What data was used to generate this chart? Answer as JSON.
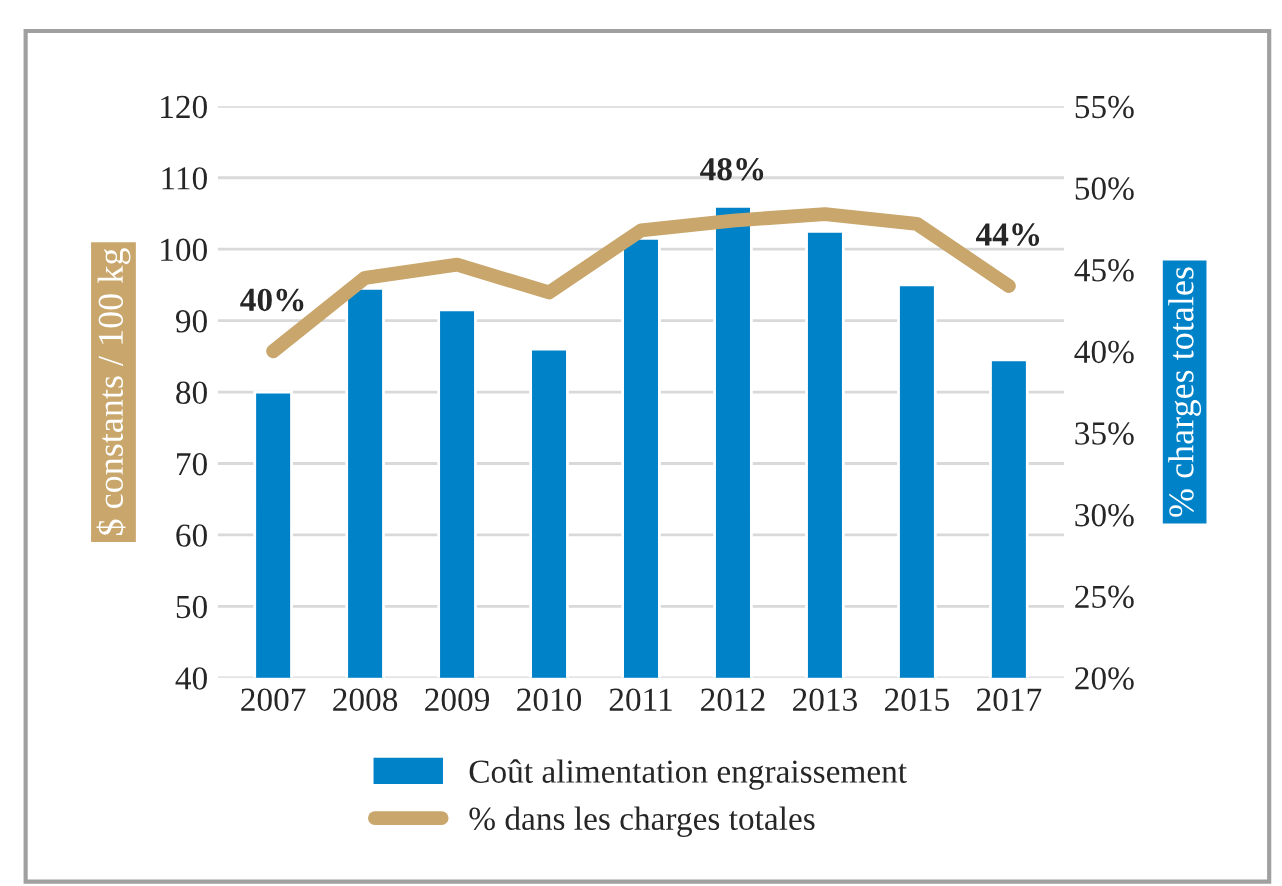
{
  "chart_data": {
    "type": "bar",
    "categories": [
      "2007",
      "2008",
      "2009",
      "2010",
      "2011",
      "2012",
      "2013",
      "2015",
      "2017"
    ],
    "ylabel": "$ constants / 100 kg",
    "y2label": "% charges totales",
    "series": [
      {
        "name": "Coût alimentation engraissement",
        "color": "#0082c8",
        "values": [
          80,
          94.5,
          91.5,
          86,
          101.5,
          106,
          102.5,
          95,
          84.5
        ]
      },
      {
        "name": "% dans les charges totales",
        "type": "line",
        "axis": "y2",
        "color": "#c9a66b",
        "values": [
          40,
          44.5,
          45.3,
          43.6,
          47.4,
          48,
          48.4,
          47.8,
          44
        ],
        "value_labels": [
          "40%",
          null,
          null,
          null,
          null,
          "48%",
          null,
          null,
          "44%"
        ]
      }
    ],
    "ylim": [
      40,
      120
    ],
    "yticks": [
      40,
      50,
      60,
      70,
      80,
      90,
      100,
      110,
      120
    ],
    "y2lim": [
      20,
      55
    ],
    "y2ticks": [
      {
        "value": 20,
        "label": "20%"
      },
      {
        "value": 25,
        "label": "25%"
      },
      {
        "value": 30,
        "label": "30%"
      },
      {
        "value": 35,
        "label": "35%"
      },
      {
        "value": 40,
        "label": "40%"
      },
      {
        "value": 45,
        "label": "45%"
      },
      {
        "value": 50,
        "label": "50%"
      },
      {
        "value": 55,
        "label": "55%"
      }
    ],
    "grid": "y",
    "legend": "bottom",
    "marker": "none",
    "line_style": "solid"
  }
}
